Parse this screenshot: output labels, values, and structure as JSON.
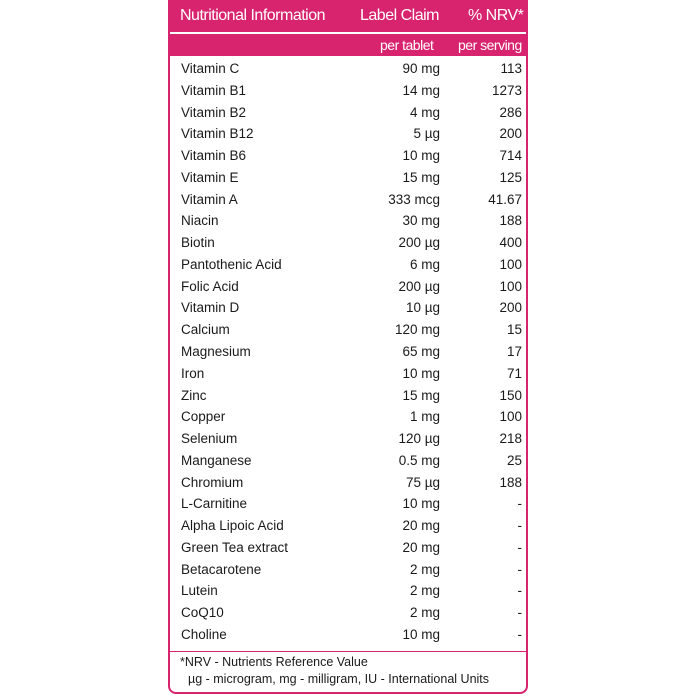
{
  "header": {
    "title": "Nutritional Information",
    "label_claim": "Label Claim",
    "nrv": "% NRV*"
  },
  "subheader": {
    "label_claim": "per tablet",
    "nrv": "per serving"
  },
  "table": {
    "rows": [
      [
        "Vitamin C",
        "90 mg",
        "113"
      ],
      [
        "Vitamin B1",
        "14 mg",
        "1273"
      ],
      [
        "Vitamin B2",
        "4 mg",
        "286"
      ],
      [
        "Vitamin B12",
        "5 µg",
        "200"
      ],
      [
        "Vitamin B6",
        "10 mg",
        "714"
      ],
      [
        "Vitamin E",
        "15 mg",
        "125"
      ],
      [
        "Vitamin A",
        "333 mcg",
        "41.67"
      ],
      [
        "Niacin",
        "30 mg",
        "188"
      ],
      [
        "Biotin",
        "200 µg",
        "400"
      ],
      [
        "Pantothenic Acid",
        "6 mg",
        "100"
      ],
      [
        "Folic Acid",
        "200 µg",
        "100"
      ],
      [
        "Vitamin D",
        "10 µg",
        "200"
      ],
      [
        "Calcium",
        "120 mg",
        "15"
      ],
      [
        "Magnesium",
        "65 mg",
        "17"
      ],
      [
        "Iron",
        "10 mg",
        "71"
      ],
      [
        "Zinc",
        "15 mg",
        "150"
      ],
      [
        "Copper",
        "1 mg",
        "100"
      ],
      [
        "Selenium",
        "120 µg",
        "218"
      ],
      [
        "Manganese",
        "0.5 mg",
        "25"
      ],
      [
        "Chromium",
        "75 µg",
        "188"
      ],
      [
        "L-Carnitine",
        "10 mg",
        "-"
      ],
      [
        "Alpha Lipoic Acid",
        "20 mg",
        "-"
      ],
      [
        "Green Tea extract",
        "20 mg",
        "-"
      ],
      [
        "Betacarotene",
        "2 mg",
        "-"
      ],
      [
        "Lutein",
        "2 mg",
        "-"
      ],
      [
        "CoQ10",
        "2 mg",
        "-"
      ],
      [
        "Choline",
        "10 mg",
        "-"
      ]
    ]
  },
  "footnote": [
    "*NRV - Nutrients Reference Value",
    "µg - microgram, mg - milligram, IU - International Units"
  ]
}
